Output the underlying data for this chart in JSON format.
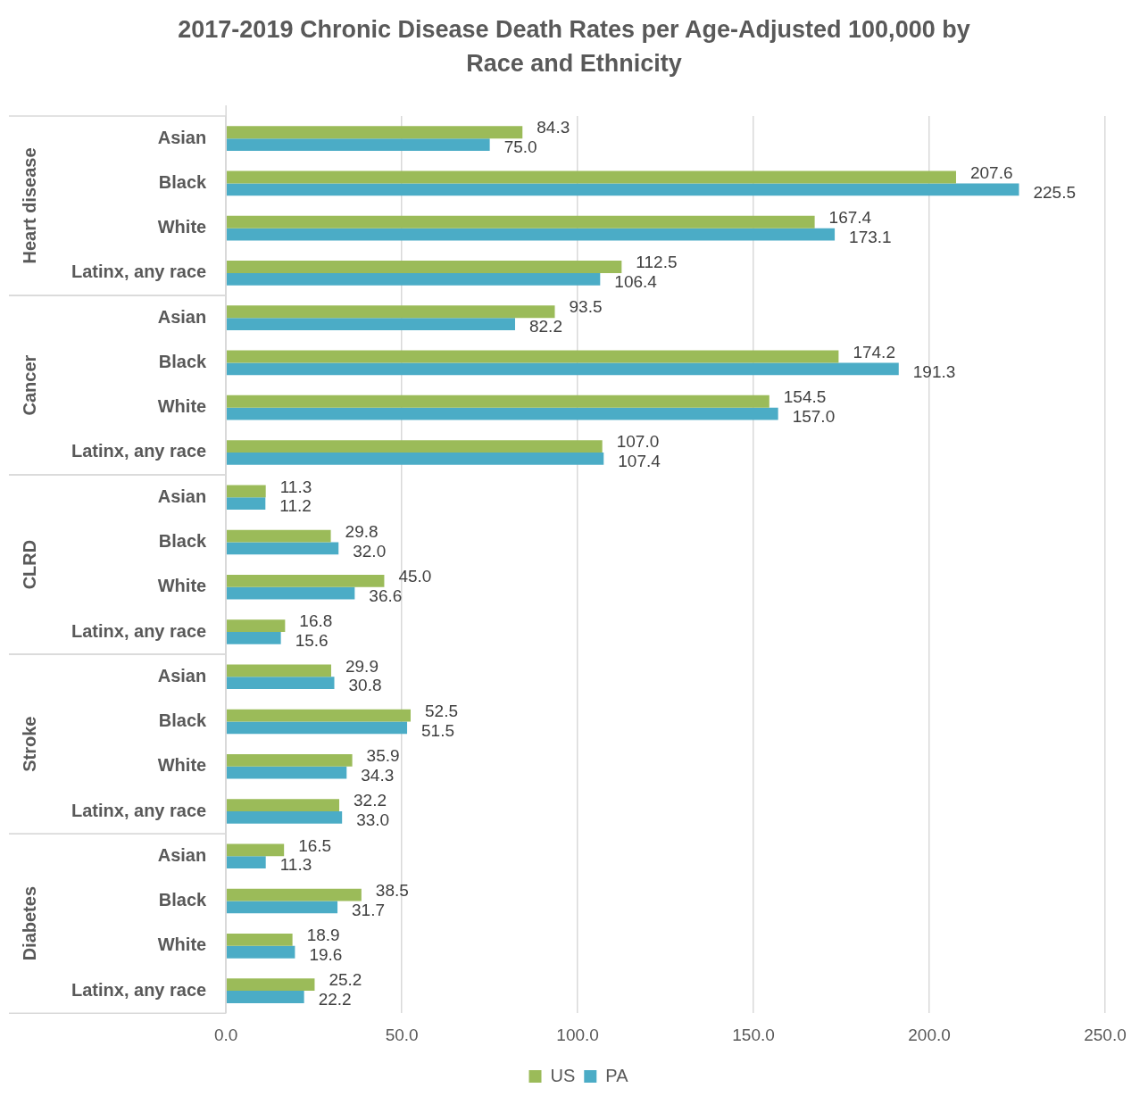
{
  "chart_data": {
    "type": "bar",
    "orientation": "horizontal",
    "title": "2017-2019 Chronic Disease Death Rates per Age-Adjusted 100,000 by Race and Ethnicity",
    "categories": [
      "Asian",
      "Black",
      "White",
      "Latinx, any race",
      "Asian",
      "Black",
      "White",
      "Latinx, any race",
      "Asian",
      "Black",
      "White",
      "Latinx, any race",
      "Asian",
      "Black",
      "White",
      "Latinx, any race",
      "Asian",
      "Black",
      "White",
      "Latinx, any race"
    ],
    "annotations": [
      "Heart disease",
      "Cancer",
      "CLRD",
      "Stroke",
      "Diabetes"
    ],
    "series": [
      {
        "name": "US",
        "color": "#9bbb59",
        "values": [
          84.3,
          207.6,
          167.4,
          112.5,
          93.5,
          174.2,
          154.5,
          107.0,
          11.3,
          29.8,
          45.0,
          16.8,
          29.9,
          52.5,
          35.9,
          32.2,
          16.5,
          38.5,
          18.9,
          25.2
        ],
        "value_labels": [
          "84.3",
          "207.6",
          "167.4",
          "112.5",
          "93.5",
          "174.2",
          "154.5",
          "107.0",
          "11.3",
          "29.8",
          "45.0",
          "16.8",
          "29.9",
          "52.5",
          "35.9",
          "32.2",
          "16.5",
          "38.5",
          "18.9",
          "25.2"
        ]
      },
      {
        "name": "PA",
        "color": "#4bacc6",
        "values": [
          75.0,
          225.5,
          173.1,
          106.4,
          82.2,
          191.3,
          157.0,
          107.4,
          11.2,
          32.0,
          36.6,
          15.6,
          30.8,
          51.5,
          34.3,
          33.0,
          11.3,
          31.7,
          19.6,
          22.2
        ],
        "value_labels": [
          "75.0",
          "225.5",
          "173.1",
          "106.4",
          "82.2",
          "191.3",
          "157.0",
          "107.4",
          "11.2",
          "32.0",
          "36.6",
          "15.6",
          "30.8",
          "51.5",
          "34.3",
          "33.0",
          "11.3",
          "31.7",
          "19.6",
          "22.2"
        ]
      }
    ],
    "xlim": [
      0,
      250
    ],
    "xticks": [
      {
        "value": 0,
        "label": "0.0"
      },
      {
        "value": 50,
        "label": "50.0"
      },
      {
        "value": 100,
        "label": "100.0"
      },
      {
        "value": 150,
        "label": "150.0"
      },
      {
        "value": 200,
        "label": "200.0"
      },
      {
        "value": 250,
        "label": "250.0"
      }
    ],
    "grid": "x",
    "legend": "bottom"
  }
}
